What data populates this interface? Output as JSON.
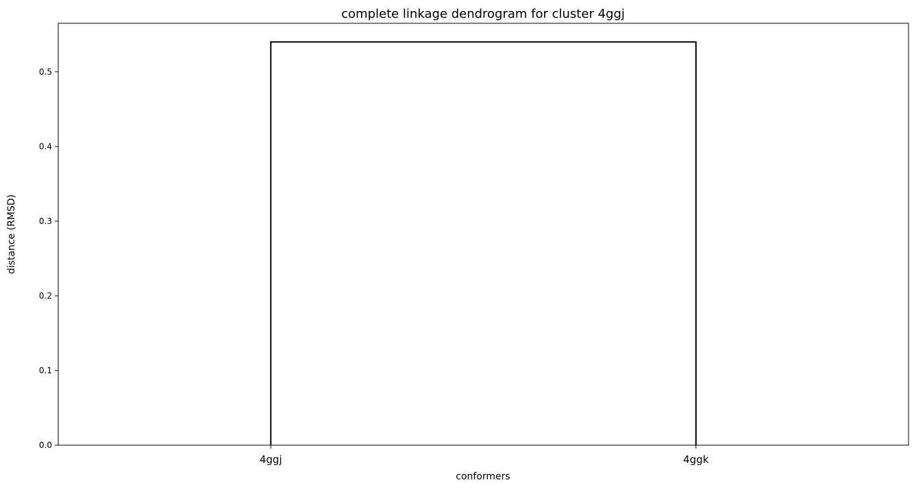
{
  "chart_data": {
    "type": "dendrogram",
    "title": "complete linkage dendrogram for cluster 4ggj",
    "xlabel": "conformers",
    "ylabel": "distance (RMSD)",
    "leaves": [
      "4ggj",
      "4ggk"
    ],
    "merges": [
      {
        "left": 0,
        "right": 1,
        "height": 0.54
      }
    ],
    "ylim": [
      0,
      0.565
    ],
    "yticks": [
      0.0,
      0.1,
      0.2,
      0.3,
      0.4,
      0.5
    ],
    "ytick_labels": [
      "0.0",
      "0.1",
      "0.2",
      "0.3",
      "0.4",
      "0.5"
    ],
    "grid": false,
    "link_color": "#000000"
  }
}
